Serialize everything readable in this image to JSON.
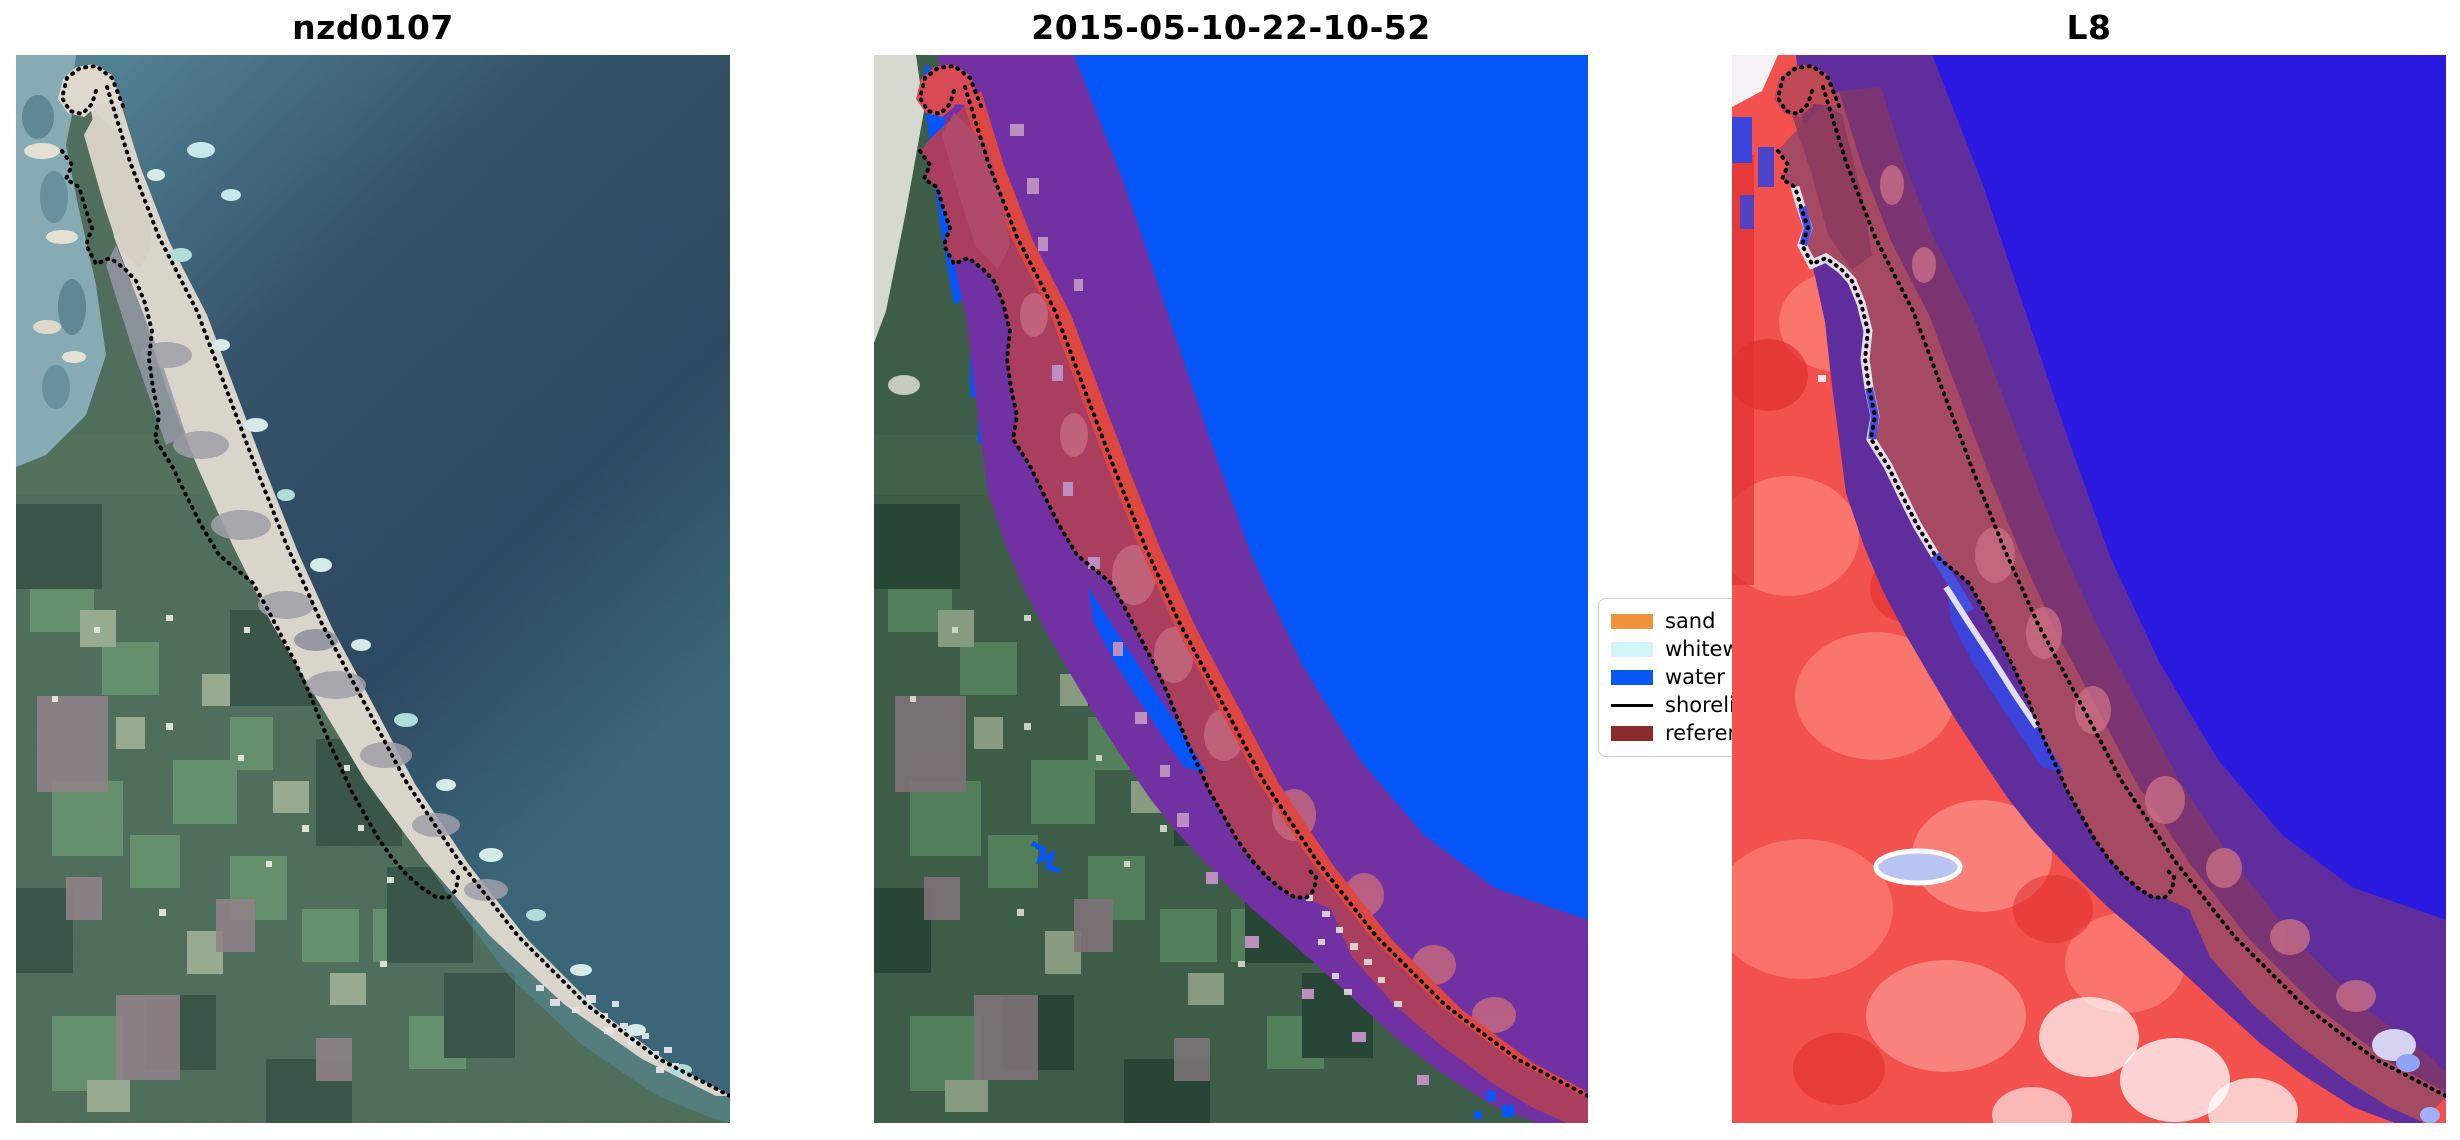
{
  "figure": {
    "background": "#ffffff",
    "description": "Three-panel satellite shoreline-mapping figure (CoastSat style): true-color image, classified image, and Landsat-8 false-color view of a sandy coastal spit"
  },
  "panels": [
    {
      "id": "true-color",
      "title": "nzd0107",
      "description": "True-color satellite image: teal lagoon and sand spit top-left, green farmland lower-left, dark blue ocean right, white beach diagonal with dotted detected shoreline"
    },
    {
      "id": "classification",
      "title": "2015-05-10-22-10-52",
      "description": "Classified image: flat blue water, purple reference-shoreline buffer band along coast, crimson sand band, pink patches, natural green land, dotted shoreline"
    },
    {
      "id": "landsat8",
      "title": "L8",
      "description": "Landsat-8 false-color/index view: red land, indigo-blue water, purple buffer band, maroon beach band, white back-barrier strip, dotted shoreline"
    }
  ],
  "legend": {
    "items": [
      {
        "label": "sand",
        "color": "#f0913c",
        "type": "patch"
      },
      {
        "label": "whitewater",
        "color": "#d2f5fc",
        "type": "patch"
      },
      {
        "label": "water",
        "color": "#0857f5",
        "type": "patch"
      },
      {
        "label": "shoreline",
        "color": "#000000",
        "type": "line"
      },
      {
        "label": "reference shoreline",
        "color": "#8b2b2b",
        "type": "patch"
      }
    ]
  },
  "colors": {
    "classified_water": "#0456f8",
    "l8_water": "#2a1ae0",
    "buffer_purple": "#7231a2",
    "l8_buffer_purple": "#5f2e9c",
    "sand_band_crimson": "#dd4742",
    "dune_band_rose": "#a93e5f",
    "whitewater_pink_patches": "#bd8fc0",
    "shoreline_black": "#000000",
    "ocean_deep": "#1d3c58",
    "land_green": "#426450",
    "l8_land_red": "#f2514d",
    "beach_sand": "#ddd8cb"
  }
}
